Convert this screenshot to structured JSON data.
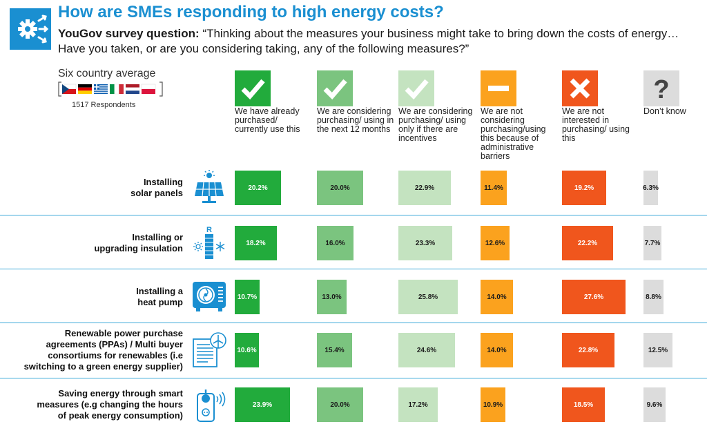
{
  "title": "How are SMEs responding to high energy costs?",
  "question_prefix": "YouGov survey question:",
  "question_text": "“Thinking about the measures your business might take to bring down the costs of energy… Have you taken, or are you considering taking, any of the following measures?”",
  "average_label": "Six country average",
  "respondents": "1517 Respondents",
  "flags_icon": "country-flags-icon",
  "chart_data": {
    "type": "table",
    "value_format": "percent",
    "columns": [
      {
        "label": "We have already purchased/ currently use this",
        "icon": "check-icon",
        "color": "#22ab3c",
        "text_color": "#ffffff"
      },
      {
        "label": "We are considering purchasing/ using in the next 12 months",
        "icon": "check-icon",
        "color": "#7bc47f",
        "text_color": "#1a1a1a"
      },
      {
        "label": "We are considering purchasing/ using only if there are incentives",
        "icon": "check-icon",
        "color": "#c4e3c0",
        "text_color": "#1a1a1a"
      },
      {
        "label": "We are not considering purchasing/using this because of administrative barriers",
        "icon": "minus-icon",
        "color": "#fba21e",
        "text_color": "#1a1a1a"
      },
      {
        "label": "We are not interested in purchasing/ using this",
        "icon": "x-icon",
        "color": "#f0561d",
        "text_color": "#ffffff"
      },
      {
        "label": "Don’t know",
        "icon": "question-icon",
        "color": "#dcdcdc",
        "text_color": "#1a1a1a"
      }
    ],
    "rows": [
      {
        "label": [
          "Installing",
          "solar panels"
        ],
        "icon": "solar-panel-icon",
        "values": [
          20.2,
          20.0,
          22.9,
          11.4,
          19.2,
          6.3
        ],
        "labels": [
          "20.2%",
          "20.0%",
          "22.9%",
          "11.4%",
          "19.2%",
          "6.3%"
        ]
      },
      {
        "label": [
          "Installing or",
          "upgrading insulation"
        ],
        "icon": "insulation-icon",
        "values": [
          18.2,
          16.0,
          23.3,
          12.6,
          22.2,
          7.7
        ],
        "labels": [
          "18.2%",
          "16.0%",
          "23.3%",
          "12.6%",
          "22.2%",
          "7.7%"
        ]
      },
      {
        "label": [
          "Installing a",
          "heat pump"
        ],
        "icon": "heat-pump-icon",
        "values": [
          10.7,
          13.0,
          25.8,
          14.0,
          27.6,
          8.8
        ],
        "labels": [
          "10.7%",
          "13.0%",
          "25.8%",
          "14.0%",
          "27.6%",
          "8.8%"
        ]
      },
      {
        "label": [
          "Renewable power purchase",
          "agreements (PPAs) / Multi buyer",
          "consortiums for renewables (i.e",
          "switching to a green energy supplier)"
        ],
        "icon": "ppa-document-icon",
        "values": [
          10.6,
          15.4,
          24.6,
          14.0,
          22.8,
          12.5
        ],
        "labels": [
          "10.6%",
          "15.4%",
          "24.6%",
          "14.0%",
          "22.8%",
          "12.5%"
        ]
      },
      {
        "label": [
          "Saving energy through smart",
          "measures (e.g changing the hours",
          "of peak energy consumption)"
        ],
        "icon": "smart-plug-icon",
        "values": [
          23.9,
          20.0,
          17.2,
          10.9,
          18.5,
          9.6
        ],
        "labels": [
          "23.9%",
          "20.0%",
          "17.2%",
          "10.9%",
          "18.5%",
          "9.6%"
        ]
      }
    ]
  }
}
